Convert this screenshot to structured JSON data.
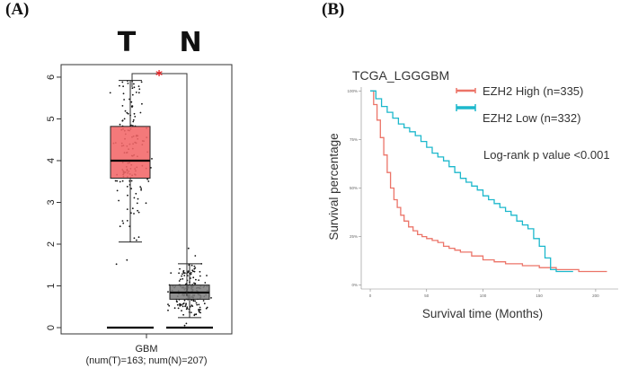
{
  "panels": {
    "a_label": "(A)",
    "b_label": "(B)"
  },
  "chart_data": [
    {
      "type": "box",
      "panel": "(A)",
      "group_labels": [
        "T",
        "N"
      ],
      "significance": "*",
      "xlabel": "GBM",
      "sublabel": "(num(T)=163; num(N)=207)",
      "ylim": [
        -0.15,
        6.3
      ],
      "yticks": [
        0,
        1,
        2,
        3,
        4,
        5,
        6
      ],
      "zero_line": 0,
      "colors": {
        "T": "#f26668",
        "N": "#808080",
        "star": "#e41a1c"
      },
      "boxes": [
        {
          "name": "T",
          "min": 2.05,
          "q1": 3.58,
          "median": 4.0,
          "q3": 4.82,
          "max": 5.92,
          "n": 163,
          "outliers": [
            1.62,
            1.52
          ]
        },
        {
          "name": "N",
          "min": 0.24,
          "q1": 0.68,
          "median": 0.84,
          "q3": 1.02,
          "max": 1.53,
          "n": 207,
          "outliers": [
            1.9,
            1.72,
            0.1,
            0.05
          ]
        }
      ]
    },
    {
      "type": "line",
      "panel": "(B)",
      "title": "TCGA_LGGGBM",
      "xlabel": "Survival time (Months)",
      "ylabel": "Survival percentage",
      "xlim": [
        -8,
        220
      ],
      "ylim": [
        -0.02,
        1.02
      ],
      "xticks": [
        "0",
        "50",
        "100",
        "150",
        "200"
      ],
      "yticks": [
        "0%",
        "25%",
        "50%",
        "75%",
        "100%"
      ],
      "annotation": "Log-rank p value <0.001",
      "series": [
        {
          "name": "EZH2 High (n=335)",
          "color": "#ec7468",
          "x": [
            0,
            3,
            6,
            9,
            12,
            15,
            18,
            21,
            24,
            27,
            30,
            34,
            38,
            42,
            46,
            50,
            55,
            60,
            65,
            70,
            75,
            80,
            90,
            100,
            110,
            120,
            135,
            150,
            165,
            185,
            210
          ],
          "y": [
            1.0,
            0.93,
            0.85,
            0.76,
            0.67,
            0.58,
            0.5,
            0.44,
            0.4,
            0.36,
            0.33,
            0.3,
            0.28,
            0.26,
            0.25,
            0.24,
            0.23,
            0.22,
            0.2,
            0.19,
            0.18,
            0.17,
            0.15,
            0.13,
            0.12,
            0.11,
            0.1,
            0.09,
            0.08,
            0.07,
            0.07
          ]
        },
        {
          "name": "EZH2 Low (n=332)",
          "color": "#1cb8cc",
          "x": [
            0,
            5,
            10,
            15,
            20,
            25,
            30,
            35,
            40,
            45,
            50,
            55,
            60,
            65,
            70,
            75,
            80,
            85,
            90,
            95,
            100,
            105,
            110,
            115,
            120,
            125,
            130,
            135,
            140,
            145,
            150,
            155,
            160,
            165,
            170,
            180
          ],
          "y": [
            1.0,
            0.96,
            0.92,
            0.89,
            0.86,
            0.83,
            0.81,
            0.79,
            0.77,
            0.74,
            0.71,
            0.68,
            0.66,
            0.64,
            0.61,
            0.58,
            0.55,
            0.53,
            0.51,
            0.49,
            0.46,
            0.44,
            0.42,
            0.4,
            0.38,
            0.36,
            0.33,
            0.31,
            0.29,
            0.24,
            0.2,
            0.14,
            0.08,
            0.07,
            0.07,
            0.07
          ]
        }
      ]
    }
  ]
}
